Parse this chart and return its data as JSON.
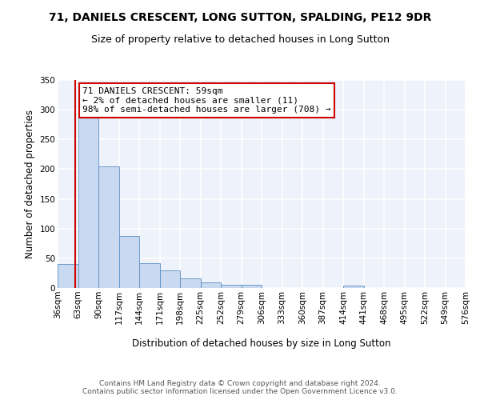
{
  "title_line1": "71, DANIELS CRESCENT, LONG SUTTON, SPALDING, PE12 9DR",
  "title_line2": "Size of property relative to detached houses in Long Sutton",
  "xlabel": "Distribution of detached houses by size in Long Sutton",
  "ylabel": "Number of detached properties",
  "bar_color": "#c9d9ef",
  "bar_edge_color": "#5b8ec4",
  "annotation_box_color": "#cc0000",
  "vline_color": "#cc0000",
  "vline_x": 59,
  "bin_edges": [
    36,
    63,
    90,
    117,
    144,
    171,
    198,
    225,
    252,
    279,
    306,
    333,
    360,
    387,
    414,
    441,
    468,
    495,
    522,
    549,
    576
  ],
  "bar_heights": [
    40,
    291,
    204,
    87,
    42,
    30,
    16,
    9,
    5,
    5,
    0,
    0,
    0,
    0,
    4,
    0,
    0,
    0,
    0,
    0
  ],
  "annotation_text": "71 DANIELS CRESCENT: 59sqm\n← 2% of detached houses are smaller (11)\n98% of semi-detached houses are larger (708) →",
  "footer_text": "Contains HM Land Registry data © Crown copyright and database right 2024.\nContains public sector information licensed under the Open Government Licence v3.0.",
  "ylim": [
    0,
    350
  ],
  "yticks": [
    0,
    50,
    100,
    150,
    200,
    250,
    300,
    350
  ],
  "background_color": "#eef2fb",
  "grid_color": "#ffffff",
  "title_fontsize": 10,
  "subtitle_fontsize": 9,
  "axis_label_fontsize": 8.5,
  "tick_fontsize": 7.5,
  "annotation_fontsize": 8,
  "footer_fontsize": 6.5
}
